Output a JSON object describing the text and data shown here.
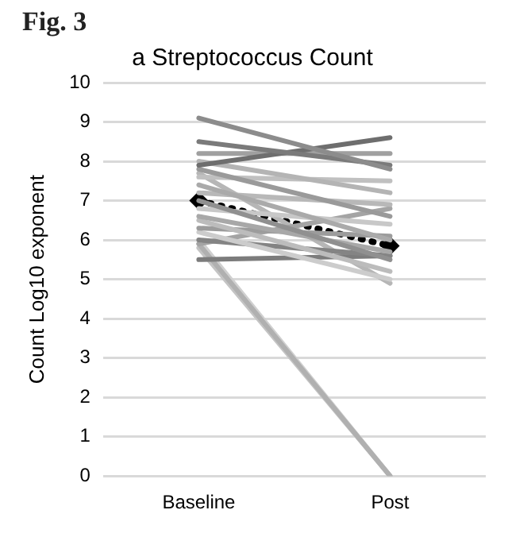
{
  "chart_data": {
    "type": "line",
    "title": "a Streptococcus Count",
    "annotations": [
      "Fig. 3"
    ],
    "ylabel": "Count Log10 exponent",
    "categories": [
      "Baseline",
      "Post"
    ],
    "ylim": [
      0,
      10
    ],
    "yticks": [
      0,
      1,
      2,
      3,
      4,
      5,
      6,
      7,
      8,
      9,
      10
    ],
    "grid": "y",
    "legend": false,
    "marker": "none",
    "line_style": "solid",
    "series": [
      {
        "color": "#8c8c8c",
        "values": [
          9.1,
          7.8
        ]
      },
      {
        "color": "#7a7a7a",
        "values": [
          8.5,
          7.9
        ]
      },
      {
        "color": "#6e6e6e",
        "values": [
          7.9,
          8.6
        ]
      },
      {
        "color": "#a0a0a0",
        "values": [
          8.2,
          8.2
        ]
      },
      {
        "color": "#b4b4b4",
        "values": [
          8.0,
          7.2
        ]
      },
      {
        "color": "#9a9a9a",
        "values": [
          7.8,
          6.6
        ]
      },
      {
        "color": "#c0c0c0",
        "values": [
          7.6,
          7.5
        ]
      },
      {
        "color": "#aaaaaa",
        "values": [
          7.4,
          6.0
        ]
      },
      {
        "color": "#b8b8b8",
        "values": [
          7.2,
          6.9
        ]
      },
      {
        "color": "#909090",
        "values": [
          7.0,
          5.5
        ]
      },
      {
        "color": "#c8c8c8",
        "values": [
          6.8,
          6.4
        ]
      },
      {
        "color": "#a8a8a8",
        "values": [
          6.6,
          5.7
        ]
      },
      {
        "color": "#bcbcbc",
        "values": [
          6.5,
          5.2
        ]
      },
      {
        "color": "#9c9c9c",
        "values": [
          6.3,
          6.1
        ]
      },
      {
        "color": "#cccccc",
        "values": [
          6.2,
          5.0
        ]
      },
      {
        "color": "#848484",
        "values": [
          6.0,
          5.6
        ]
      },
      {
        "color": "#a4a4a4",
        "values": [
          5.9,
          6.8
        ]
      },
      {
        "color": "#7c7c7c",
        "values": [
          5.5,
          5.6
        ]
      },
      {
        "color": "#b0b0b0",
        "values": [
          5.9,
          0
        ]
      },
      {
        "color": "#c4c4c4",
        "values": [
          5.8,
          0
        ]
      },
      {
        "color": "#d0d0d0",
        "values": [
          6.0,
          0
        ]
      },
      {
        "color": "#b6b6b6",
        "values": [
          7.7,
          4.9
        ]
      },
      {
        "color": "#000000",
        "values": [
          7.0,
          5.85
        ],
        "line_style": "dotted",
        "marker": "diamond"
      }
    ]
  }
}
